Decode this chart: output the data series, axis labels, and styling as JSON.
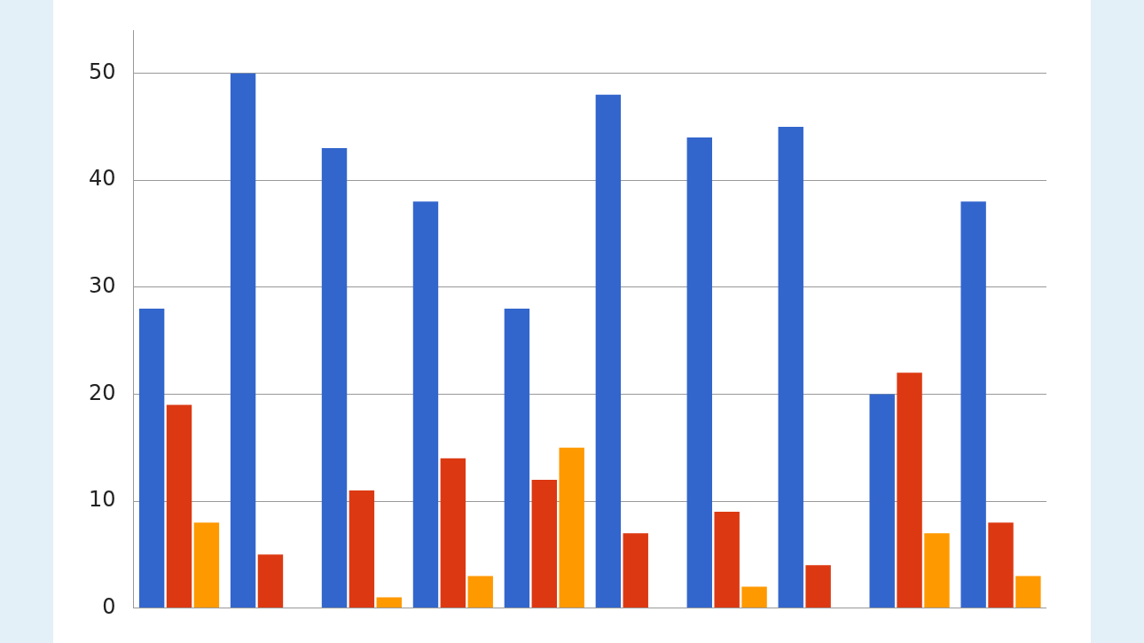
{
  "chart_data": {
    "type": "bar",
    "categories": [
      null,
      null,
      null,
      null,
      null,
      null,
      null,
      null,
      null,
      null
    ],
    "series": [
      {
        "color": "#3366cc",
        "values": [
          28,
          50,
          43,
          38,
          28,
          48,
          44,
          45,
          20,
          38
        ]
      },
      {
        "color": "#dc3912",
        "values": [
          19,
          5,
          11,
          14,
          12,
          7,
          9,
          4,
          22,
          8
        ]
      },
      {
        "color": "#ff9900",
        "values": [
          8,
          0,
          1,
          3,
          15,
          0,
          2,
          0,
          7,
          3
        ]
      }
    ],
    "ylim": [
      0,
      54
    ],
    "yticks": [
      0,
      10,
      20,
      30,
      40,
      50
    ],
    "grid": "y"
  }
}
